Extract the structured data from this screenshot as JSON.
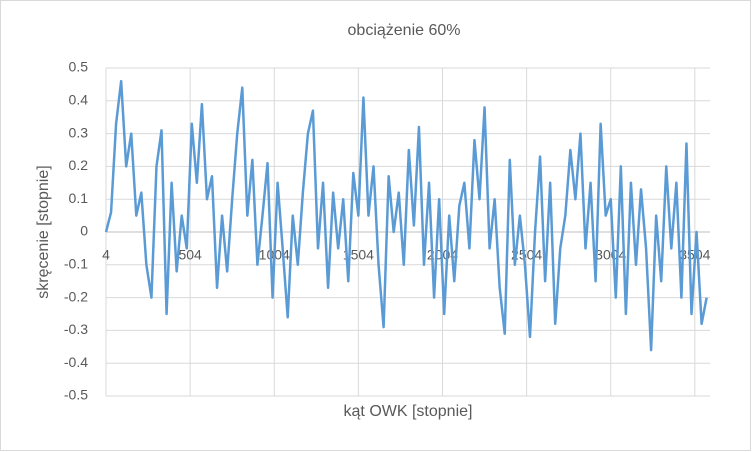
{
  "chart_data": {
    "type": "line",
    "title": "obciążenie 60%",
    "x_label": "kąt OWK [stopnie]",
    "y_label": "skręcenie [stopnie]",
    "xlim": [
      4,
      3594
    ],
    "xticks": [
      4,
      504,
      1004,
      1504,
      2004,
      2504,
      3004,
      3504
    ],
    "ylim": [
      -0.5,
      0.5
    ],
    "yticks": [
      -0.5,
      -0.4,
      -0.3,
      -0.2,
      -0.1,
      0,
      0.1,
      0.2,
      0.3,
      0.4,
      0.5
    ],
    "grid": true,
    "x": [
      4,
      34,
      64,
      94,
      124,
      154,
      184,
      214,
      244,
      274,
      304,
      334,
      364,
      394,
      424,
      454,
      484,
      514,
      544,
      574,
      604,
      634,
      664,
      694,
      724,
      754,
      784,
      814,
      844,
      874,
      904,
      934,
      964,
      994,
      1024,
      1054,
      1084,
      1114,
      1144,
      1174,
      1204,
      1234,
      1264,
      1294,
      1324,
      1354,
      1384,
      1414,
      1444,
      1474,
      1504,
      1534,
      1564,
      1594,
      1624,
      1654,
      1684,
      1714,
      1744,
      1774,
      1804,
      1834,
      1864,
      1894,
      1924,
      1954,
      1984,
      2014,
      2044,
      2074,
      2104,
      2134,
      2164,
      2194,
      2224,
      2254,
      2284,
      2314,
      2344,
      2374,
      2404,
      2434,
      2464,
      2494,
      2524,
      2554,
      2584,
      2614,
      2644,
      2674,
      2704,
      2734,
      2764,
      2794,
      2824,
      2854,
      2884,
      2914,
      2944,
      2974,
      3004,
      3034,
      3064,
      3094,
      3124,
      3154,
      3184,
      3214,
      3244,
      3274,
      3304,
      3334,
      3364,
      3394,
      3424,
      3454,
      3484,
      3514,
      3544,
      3574
    ],
    "series": [
      {
        "color": "#5b9bd5",
        "values": [
          0.0,
          0.06,
          0.33,
          0.46,
          0.2,
          0.3,
          0.05,
          0.12,
          -0.1,
          -0.2,
          0.2,
          0.31,
          -0.25,
          0.15,
          -0.12,
          0.05,
          -0.05,
          0.33,
          0.15,
          0.39,
          0.1,
          0.17,
          -0.17,
          0.05,
          -0.12,
          0.1,
          0.3,
          0.44,
          0.05,
          0.22,
          -0.1,
          0.05,
          0.21,
          -0.2,
          0.15,
          -0.05,
          -0.26,
          0.05,
          -0.1,
          0.12,
          0.3,
          0.37,
          -0.05,
          0.15,
          -0.17,
          0.12,
          -0.05,
          0.1,
          -0.15,
          0.18,
          0.05,
          0.41,
          0.05,
          0.2,
          -0.1,
          -0.29,
          0.17,
          0.0,
          0.12,
          -0.1,
          0.25,
          0.02,
          0.32,
          -0.1,
          0.15,
          -0.2,
          0.1,
          -0.25,
          0.05,
          -0.15,
          0.08,
          0.15,
          -0.05,
          0.28,
          0.1,
          0.38,
          -0.05,
          0.1,
          -0.17,
          -0.31,
          0.22,
          -0.1,
          0.05,
          -0.1,
          -0.32,
          0.0,
          0.23,
          -0.15,
          0.15,
          -0.28,
          -0.05,
          0.05,
          0.25,
          0.1,
          0.3,
          -0.05,
          0.15,
          -0.15,
          0.33,
          0.05,
          0.1,
          -0.2,
          0.2,
          -0.25,
          0.15,
          -0.1,
          0.13,
          -0.05,
          -0.36,
          0.05,
          -0.15,
          0.2,
          -0.05,
          0.15,
          -0.2,
          0.27,
          -0.25,
          0.0,
          -0.28,
          -0.2
        ]
      }
    ]
  }
}
